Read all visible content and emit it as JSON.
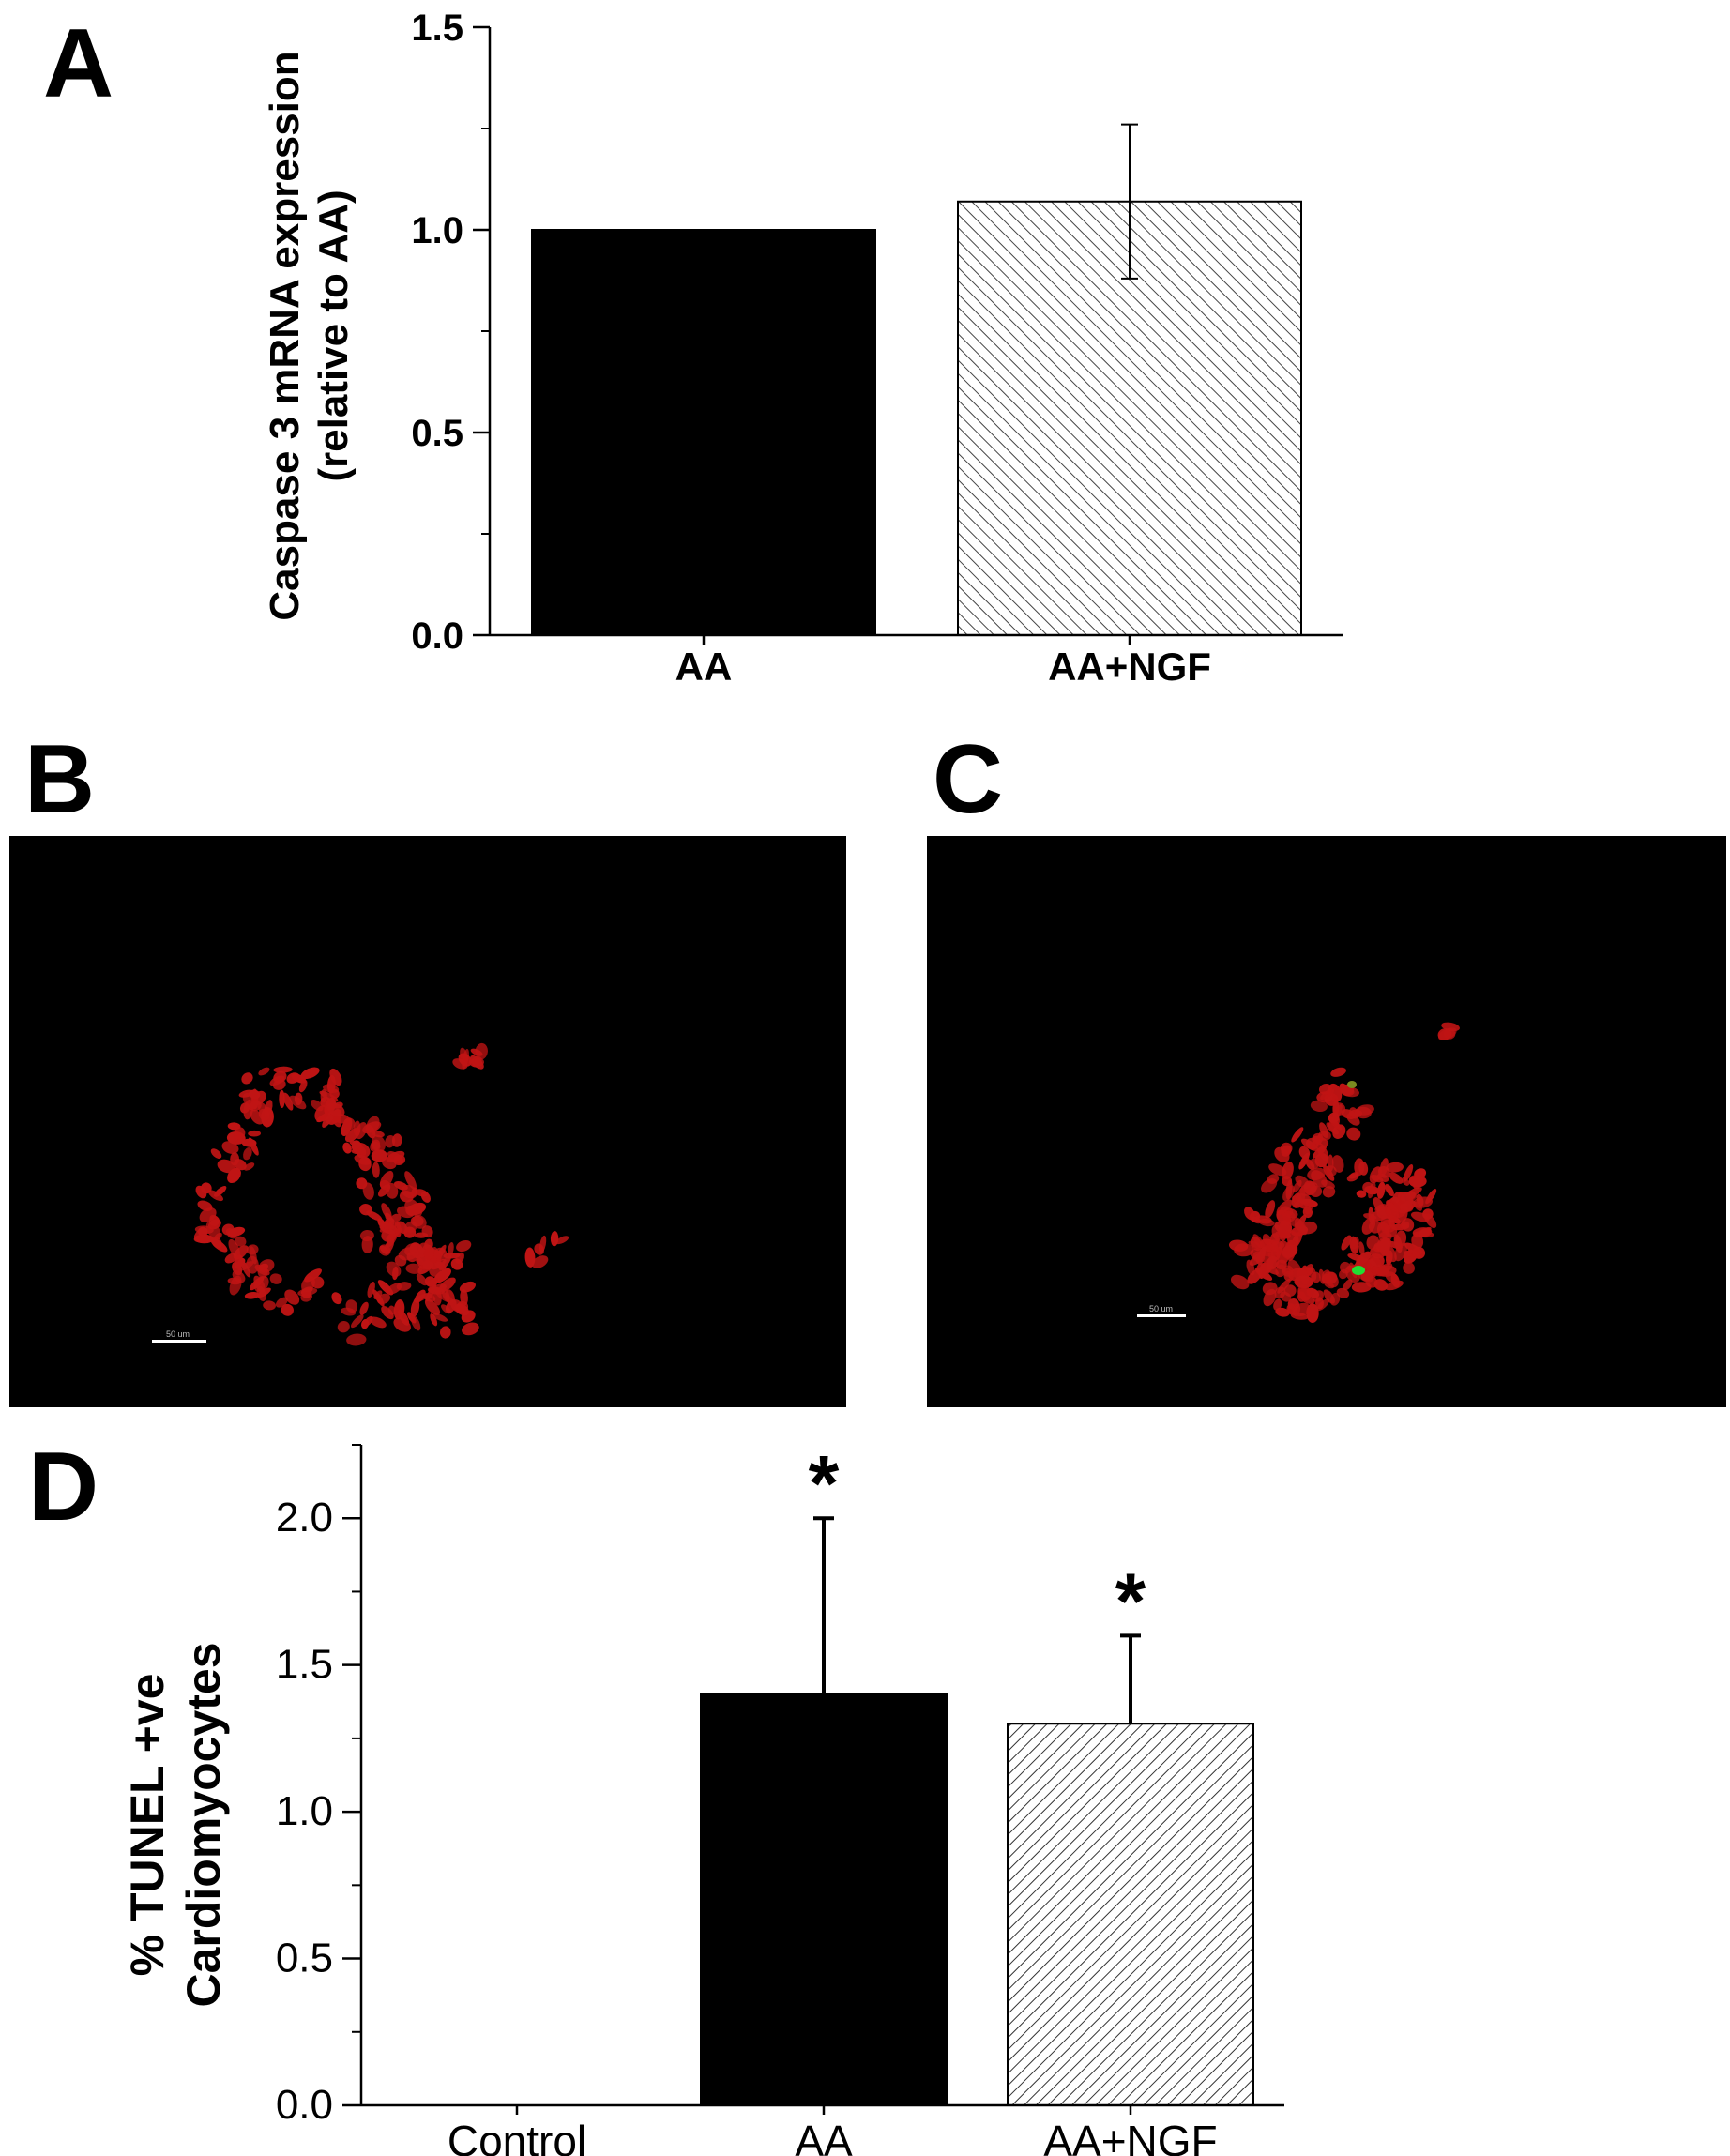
{
  "panels": {
    "a_letter": "A",
    "b_letter": "B",
    "c_letter": "C",
    "d_letter": "D"
  },
  "images": {
    "b": {
      "scale_bar_label": "50 um",
      "cell_color": "#c01414",
      "background": "#000000"
    },
    "c": {
      "scale_bar_label": "50 um",
      "cell_color": "#c01414",
      "highlight_color": "#22dd33",
      "background": "#000000"
    }
  },
  "colors": {
    "bar_solid": "#000000",
    "bar_hatch_fill": "#ffffff",
    "hatch_line": "#333333"
  },
  "chart_data": [
    {
      "id": "A",
      "type": "bar",
      "categories": [
        "AA",
        "AA+NGF"
      ],
      "values": [
        1.0,
        1.07
      ],
      "error": [
        null,
        0.19
      ],
      "fills": [
        "solid",
        "hatched"
      ],
      "title": "",
      "xlabel": "",
      "ylabel_lines": [
        "Caspase 3 mRNA expression",
        "(relative to AA)"
      ],
      "ylim": [
        0,
        1.5
      ],
      "yticks": [
        "0.0",
        "0.5",
        "1.0",
        "1.5"
      ],
      "grid": false
    },
    {
      "id": "D",
      "type": "bar",
      "categories": [
        "Control",
        "AA",
        "AA+NGF"
      ],
      "values": [
        0,
        1.4,
        1.3
      ],
      "error": [
        null,
        0.6,
        0.3
      ],
      "significance": [
        "",
        "*",
        "*"
      ],
      "fills": [
        "none",
        "solid",
        "hatched"
      ],
      "title": "",
      "xlabel": "",
      "ylabel_lines": [
        "% TUNEL +ve",
        "Cardiomyocytes"
      ],
      "ylim": [
        0,
        2.25
      ],
      "yticks": [
        "0.0",
        "0.5",
        "1.0",
        "1.5",
        "2.0"
      ],
      "grid": false
    }
  ]
}
